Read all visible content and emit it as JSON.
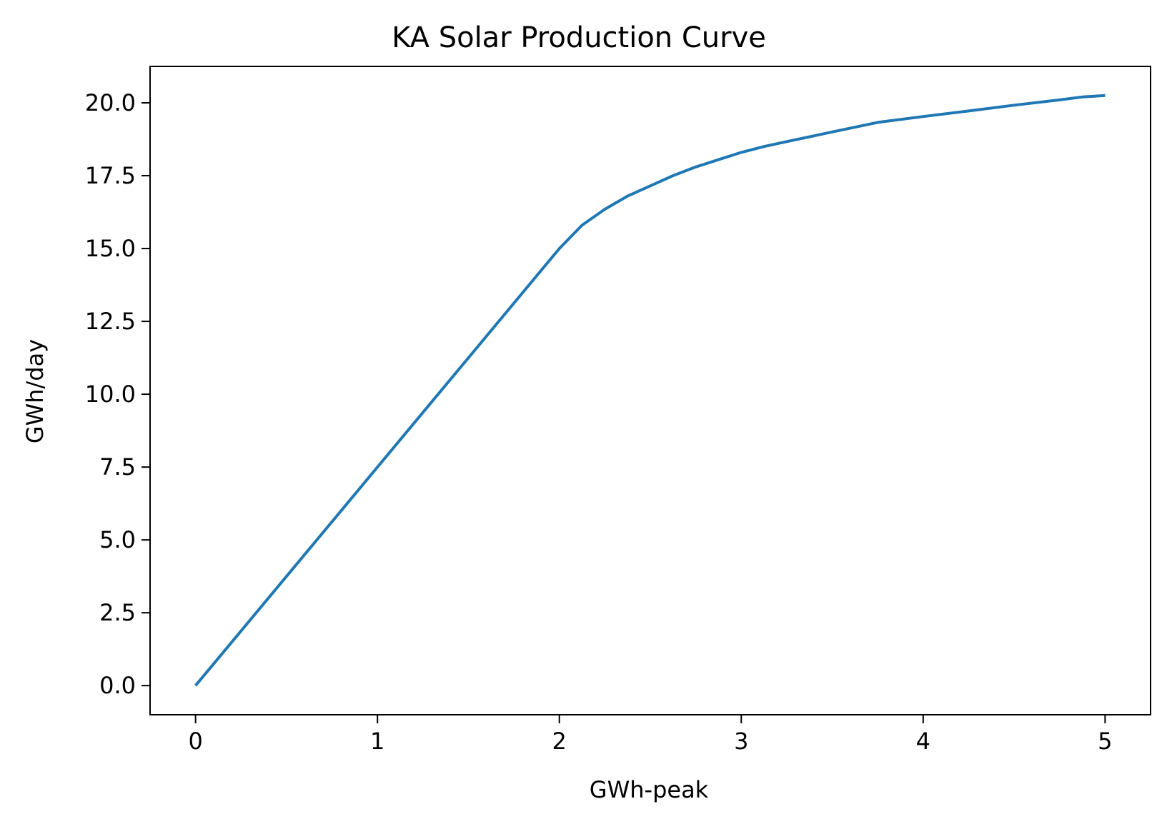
{
  "chart_data": {
    "type": "line",
    "title": "KA Solar Production Curve",
    "xlabel": "GWh-peak",
    "ylabel": "GWh/day",
    "xlim": [
      -0.25,
      5.25
    ],
    "ylim": [
      -1.0,
      21.25
    ],
    "xticks": [
      0,
      1,
      2,
      3,
      4,
      5
    ],
    "xtick_labels": [
      "0",
      "1",
      "2",
      "3",
      "4",
      "5"
    ],
    "yticks": [
      0,
      2.5,
      5,
      7.5,
      10,
      12.5,
      15,
      17.5,
      20
    ],
    "ytick_labels": [
      "0.0",
      "2.5",
      "5.0",
      "7.5",
      "10.0",
      "12.5",
      "15.0",
      "17.5",
      "20.0"
    ],
    "grid": false,
    "series": [
      {
        "color": "#1f77b4",
        "x": [
          0,
          0.5,
          1.0,
          1.5,
          2.0,
          2.125,
          2.25,
          2.375,
          2.5,
          2.625,
          2.75,
          3.0,
          3.125,
          3.25,
          3.5,
          3.75,
          4.0,
          4.25,
          4.5,
          4.75,
          4.875,
          5.0
        ],
        "y": [
          0,
          3.75,
          7.5,
          11.25,
          15.0,
          15.8,
          16.35,
          16.8,
          17.15,
          17.5,
          17.8,
          18.3,
          18.5,
          18.67,
          19.0,
          19.33,
          19.53,
          19.72,
          19.92,
          20.1,
          20.2,
          20.25
        ]
      }
    ]
  }
}
